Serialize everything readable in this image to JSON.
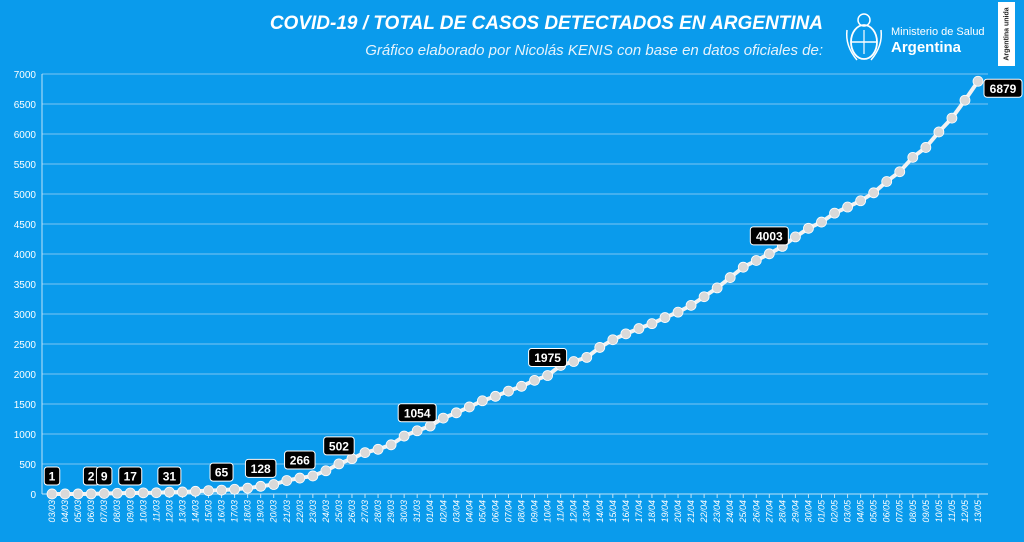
{
  "header": {
    "title": "COVID-19  /  TOTAL DE CASOS DETECTADOS EN ARGENTINA",
    "subtitle": "Gráfico elaborado por Nicolás KENIS con base en datos oficiales de:"
  },
  "logo": {
    "line1": "Ministerio de Salud",
    "line2": "Argentina",
    "emblem": "coat-of-arms-icon"
  },
  "side_badge": {
    "text": "Argentina unida"
  },
  "colors": {
    "background": "#0a9bec",
    "line": "#f2f2f2",
    "marker": "#d9d9d9",
    "label_box": "#000000",
    "label_text": "#ffffff"
  },
  "chart_data": {
    "type": "line",
    "title": "COVID-19  /  TOTAL DE CASOS DETECTADOS EN ARGENTINA",
    "xlabel": "",
    "ylabel": "",
    "ylim": [
      0,
      7000
    ],
    "yticks": [
      0,
      500,
      1000,
      1500,
      2000,
      2500,
      3000,
      3500,
      4000,
      4500,
      5000,
      5500,
      6000,
      6500,
      7000
    ],
    "grid": true,
    "legend": "none",
    "x": [
      "03/03",
      "04/03",
      "05/03",
      "06/03",
      "07/03",
      "08/03",
      "09/03",
      "10/03",
      "11/03",
      "12/03",
      "13/03",
      "14/03",
      "15/03",
      "16/03",
      "17/03",
      "18/03",
      "19/03",
      "20/03",
      "21/03",
      "22/03",
      "23/03",
      "24/03",
      "25/03",
      "26/03",
      "27/03",
      "28/03",
      "29/03",
      "30/03",
      "31/03",
      "01/04",
      "02/04",
      "03/04",
      "04/04",
      "05/04",
      "06/04",
      "07/04",
      "08/04",
      "09/04",
      "10/04",
      "11/04",
      "12/04",
      "13/04",
      "14/04",
      "15/04",
      "16/04",
      "17/04",
      "18/04",
      "19/04",
      "20/04",
      "21/04",
      "22/04",
      "23/04",
      "24/04",
      "25/04",
      "26/04",
      "27/04",
      "28/04",
      "29/04",
      "30/04",
      "01/05",
      "02/05",
      "03/05",
      "04/05",
      "05/05",
      "06/05",
      "07/05",
      "08/05",
      "09/05",
      "10/05",
      "11/05",
      "12/05",
      "13/05"
    ],
    "series": [
      {
        "values": [
          1,
          1,
          1,
          2,
          9,
          12,
          17,
          19,
          21,
          31,
          34,
          45,
          56,
          65,
          79,
          97,
          128,
          158,
          225,
          266,
          301,
          387,
          502,
          589,
          690,
          745,
          820,
          966,
          1054,
          1133,
          1265,
          1353,
          1451,
          1554,
          1628,
          1715,
          1795,
          1894,
          1975,
          2142,
          2208,
          2277,
          2443,
          2571,
          2669,
          2758,
          2839,
          2941,
          3031,
          3144,
          3288,
          3435,
          3607,
          3780,
          3892,
          4003,
          4127,
          4285,
          4428,
          4532,
          4681,
          4783,
          4887,
          5020,
          5208,
          5371,
          5611,
          5776,
          6034,
          6265,
          6563,
          6879
        ]
      }
    ],
    "data_labels": [
      {
        "x": "03/03",
        "value": "1"
      },
      {
        "x": "06/03",
        "value": "2"
      },
      {
        "x": "07/03",
        "value": "9"
      },
      {
        "x": "09/03",
        "value": "17"
      },
      {
        "x": "12/03",
        "value": "31"
      },
      {
        "x": "16/03",
        "value": "65"
      },
      {
        "x": "19/03",
        "value": "128"
      },
      {
        "x": "22/03",
        "value": "266"
      },
      {
        "x": "25/03",
        "value": "502"
      },
      {
        "x": "31/03",
        "value": "1054"
      },
      {
        "x": "10/04",
        "value": "1975"
      },
      {
        "x": "27/04",
        "value": "4003"
      },
      {
        "x": "13/05",
        "value": "6879"
      }
    ]
  }
}
